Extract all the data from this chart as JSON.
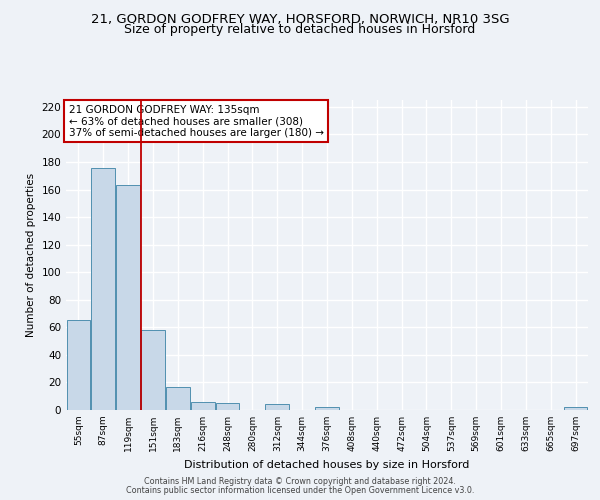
{
  "title": "21, GORDON GODFREY WAY, HORSFORD, NORWICH, NR10 3SG",
  "subtitle": "Size of property relative to detached houses in Horsford",
  "xlabel": "Distribution of detached houses by size in Horsford",
  "ylabel": "Number of detached properties",
  "bar_labels": [
    "55sqm",
    "87sqm",
    "119sqm",
    "151sqm",
    "183sqm",
    "216sqm",
    "248sqm",
    "280sqm",
    "312sqm",
    "344sqm",
    "376sqm",
    "408sqm",
    "440sqm",
    "472sqm",
    "504sqm",
    "537sqm",
    "569sqm",
    "601sqm",
    "633sqm",
    "665sqm",
    "697sqm"
  ],
  "bar_values": [
    65,
    176,
    163,
    58,
    17,
    6,
    5,
    0,
    4,
    0,
    2,
    0,
    0,
    0,
    0,
    0,
    0,
    0,
    0,
    0,
    2
  ],
  "bar_color": "#c8d8e8",
  "bar_edge_color": "#5090b0",
  "vline_x": 2.5,
  "vline_color": "#c00000",
  "annotation_title": "21 GORDON GODFREY WAY: 135sqm",
  "annotation_line1": "← 63% of detached houses are smaller (308)",
  "annotation_line2": "37% of semi-detached houses are larger (180) →",
  "annotation_box_color": "#c00000",
  "ylim": [
    0,
    225
  ],
  "yticks": [
    0,
    20,
    40,
    60,
    80,
    100,
    120,
    140,
    160,
    180,
    200,
    220
  ],
  "footer1": "Contains HM Land Registry data © Crown copyright and database right 2024.",
  "footer2": "Contains public sector information licensed under the Open Government Licence v3.0.",
  "bg_color": "#eef2f7",
  "grid_color": "#ffffff",
  "title_fontsize": 9.5,
  "subtitle_fontsize": 9
}
